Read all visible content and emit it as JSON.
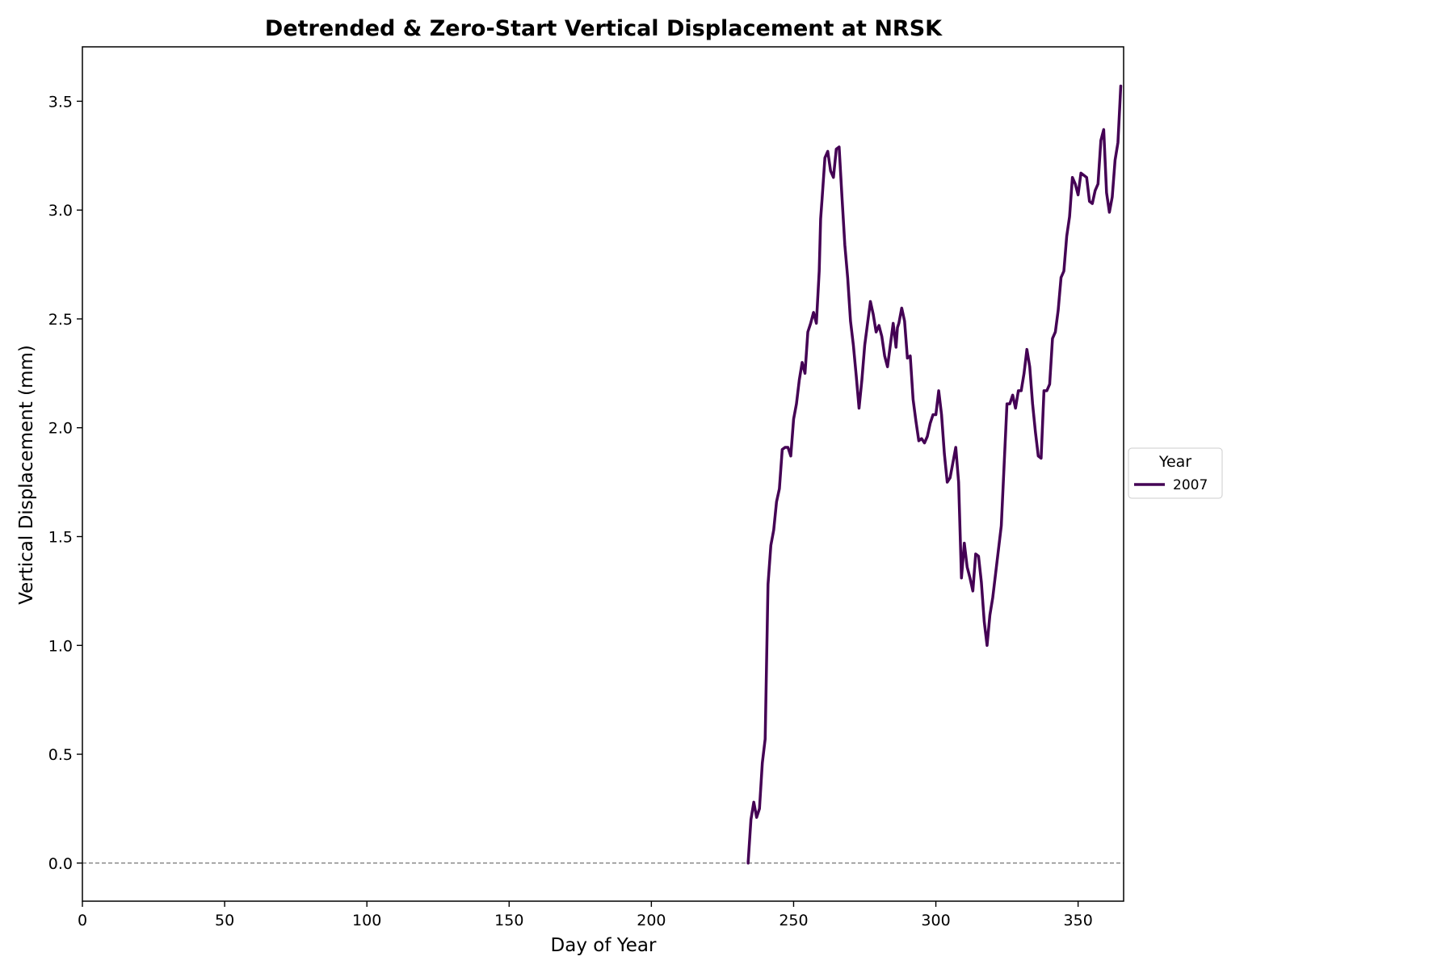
{
  "chart_data": {
    "type": "line",
    "title": "Detrended & Zero-Start Vertical Displacement at NRSK",
    "xlabel": "Day of Year",
    "ylabel": "Vertical Displacement (mm)",
    "xlim": [
      0,
      366
    ],
    "ylim": [
      -0.175,
      3.75
    ],
    "xticks": [
      0,
      50,
      100,
      150,
      200,
      250,
      300,
      350
    ],
    "yticks": [
      0.0,
      0.5,
      1.0,
      1.5,
      2.0,
      2.5,
      3.0,
      3.5
    ],
    "xtick_labels": [
      "0",
      "50",
      "100",
      "150",
      "200",
      "250",
      "300",
      "350"
    ],
    "ytick_labels": [
      "0.0",
      "0.5",
      "1.0",
      "1.5",
      "2.0",
      "2.5",
      "3.0",
      "3.5"
    ],
    "grid": false,
    "reference_line": {
      "y": 0.0,
      "style": "dashed",
      "color": "#808080"
    },
    "legend": {
      "title": "Year",
      "placement": "center-right-outside"
    },
    "series": [
      {
        "name": "2007",
        "color": "#440154",
        "x": [
          234,
          235,
          236,
          237,
          238,
          239,
          240,
          241,
          242,
          243,
          244,
          245,
          246,
          247,
          248,
          249,
          250,
          251,
          252,
          253,
          254,
          255,
          256,
          257,
          258,
          259,
          259.5,
          260,
          261,
          262,
          263,
          264,
          265,
          266,
          267,
          268,
          269,
          270,
          271,
          272,
          273,
          274,
          275,
          276,
          277,
          278,
          279,
          280,
          281,
          282,
          283,
          284,
          285,
          286,
          286.5,
          287,
          288,
          289,
          290,
          291,
          292,
          293,
          294,
          295,
          296,
          297,
          298,
          299,
          300,
          301,
          302,
          303,
          304,
          305,
          306,
          307,
          308,
          309,
          310,
          311,
          312,
          313,
          314,
          315,
          316,
          317,
          318,
          319,
          320,
          321,
          322,
          323,
          324,
          325,
          326,
          327,
          328,
          329,
          330,
          331,
          332,
          333,
          334,
          335,
          336,
          337,
          338,
          339,
          340,
          341,
          342,
          343,
          344,
          345,
          346,
          347,
          348,
          349,
          350,
          351,
          352,
          353,
          354,
          355,
          356,
          357,
          358,
          359,
          360,
          361,
          362,
          363,
          364,
          365
        ],
        "y": [
          0.0,
          0.2,
          0.28,
          0.21,
          0.25,
          0.46,
          0.57,
          1.28,
          1.46,
          1.53,
          1.66,
          1.72,
          1.9,
          1.91,
          1.91,
          1.87,
          2.04,
          2.11,
          2.22,
          2.3,
          2.25,
          2.44,
          2.48,
          2.53,
          2.48,
          2.72,
          2.96,
          3.05,
          3.24,
          3.27,
          3.18,
          3.15,
          3.28,
          3.29,
          3.06,
          2.84,
          2.69,
          2.49,
          2.38,
          2.24,
          2.09,
          2.22,
          2.38,
          2.48,
          2.58,
          2.52,
          2.44,
          2.47,
          2.42,
          2.33,
          2.28,
          2.38,
          2.48,
          2.37,
          2.46,
          2.48,
          2.55,
          2.49,
          2.32,
          2.33,
          2.13,
          2.03,
          1.94,
          1.95,
          1.93,
          1.96,
          2.02,
          2.06,
          2.06,
          2.17,
          2.06,
          1.88,
          1.75,
          1.77,
          1.84,
          1.91,
          1.75,
          1.31,
          1.47,
          1.36,
          1.31,
          1.25,
          1.42,
          1.41,
          1.29,
          1.11,
          1.0,
          1.14,
          1.22,
          1.33,
          1.44,
          1.55,
          1.83,
          2.11,
          2.11,
          2.15,
          2.09,
          2.17,
          2.17,
          2.25,
          2.36,
          2.28,
          2.11,
          1.98,
          1.87,
          1.86,
          2.17,
          2.17,
          2.2,
          2.41,
          2.44,
          2.54,
          2.69,
          2.72,
          2.88,
          2.97,
          3.15,
          3.12,
          3.07,
          3.17,
          3.16,
          3.15,
          3.04,
          3.03,
          3.09,
          3.12,
          3.32,
          3.37,
          3.08,
          2.99,
          3.06,
          3.23,
          3.31,
          3.57
        ]
      }
    ]
  }
}
